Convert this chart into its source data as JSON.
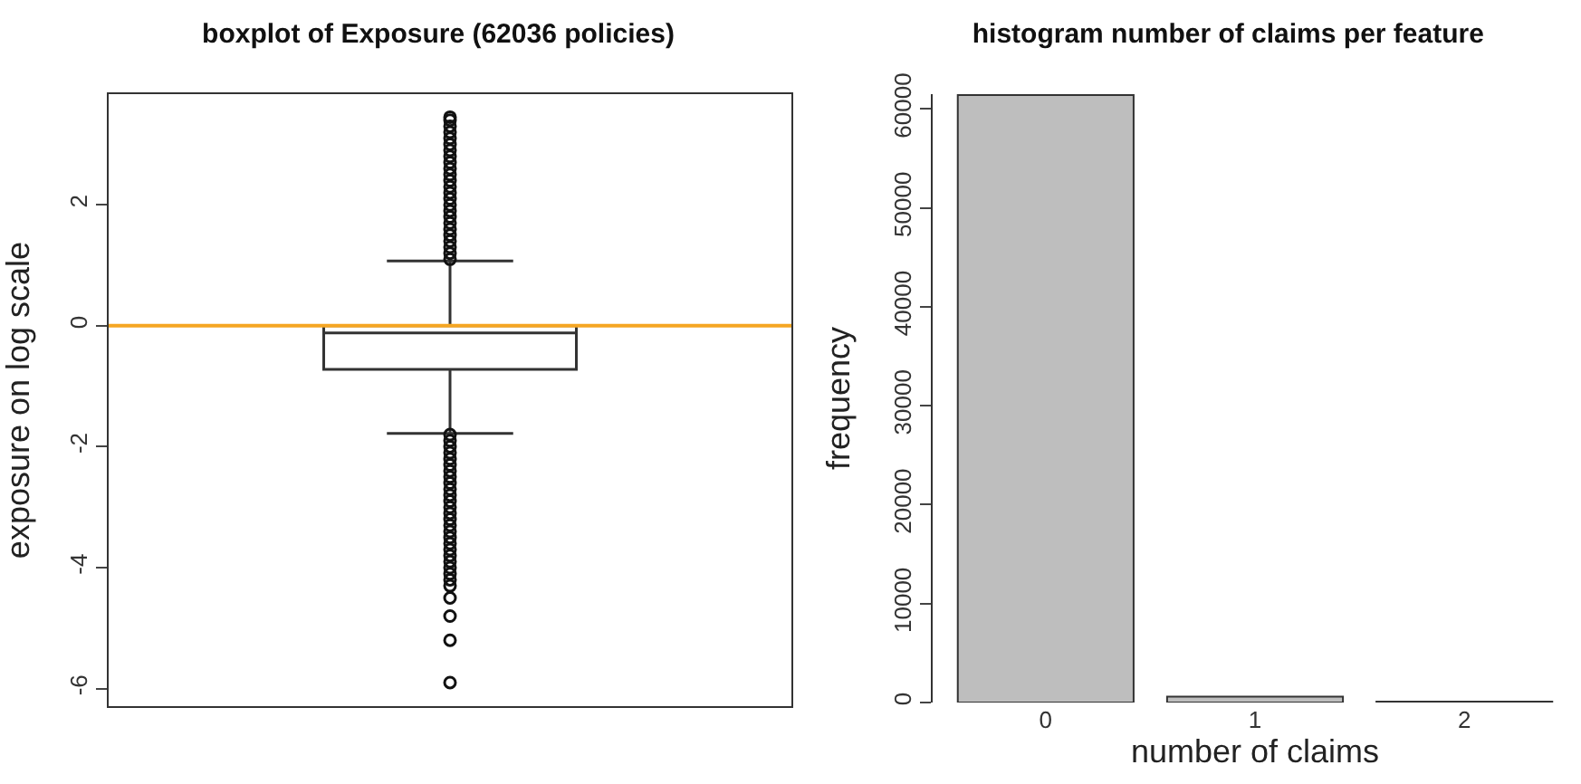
{
  "chart_data": [
    {
      "type": "box",
      "title": "boxplot of Exposure (62036 policies)",
      "ylabel": "exposure on log scale",
      "categories": [
        null
      ],
      "boxes": [
        {
          "low": -1.78,
          "q1": -0.72,
          "median": -0.12,
          "q3": 0.0,
          "high": 1.07,
          "outliers": [
            1.1,
            1.2,
            1.3,
            1.4,
            1.5,
            1.6,
            1.7,
            1.8,
            1.9,
            2.0,
            2.1,
            2.2,
            2.3,
            2.4,
            2.5,
            2.6,
            2.7,
            2.8,
            2.9,
            3.0,
            3.1,
            3.2,
            3.3,
            3.4,
            3.45,
            -1.8,
            -1.9,
            -2.0,
            -2.1,
            -2.2,
            -2.3,
            -2.4,
            -2.5,
            -2.6,
            -2.7,
            -2.8,
            -2.9,
            -3.0,
            -3.1,
            -3.2,
            -3.3,
            -3.4,
            -3.5,
            -3.6,
            -3.7,
            -3.8,
            -3.9,
            -4.0,
            -4.1,
            -4.2,
            -4.3,
            -4.5,
            -4.8,
            -5.2,
            -5.9
          ]
        }
      ],
      "ylim": [
        -6.29,
        3.83
      ],
      "yticks": [
        -6,
        -4,
        -2,
        0,
        2
      ],
      "tick_labels": "y",
      "grid": false,
      "ref_lines": [
        {
          "axis": "y",
          "value": 0,
          "color": "#f5a623"
        }
      ]
    },
    {
      "type": "bar",
      "title": "histogram number of claims per feature",
      "xlabel": "number of claims",
      "ylabel": "frequency",
      "categories": [
        "0",
        "1",
        "2"
      ],
      "values": [
        61400,
        600,
        100
      ],
      "color": "#bebebe",
      "ylim": [
        0,
        61500
      ],
      "yticks": [
        0,
        10000,
        20000,
        30000,
        40000,
        50000,
        60000
      ],
      "grid": false
    }
  ]
}
